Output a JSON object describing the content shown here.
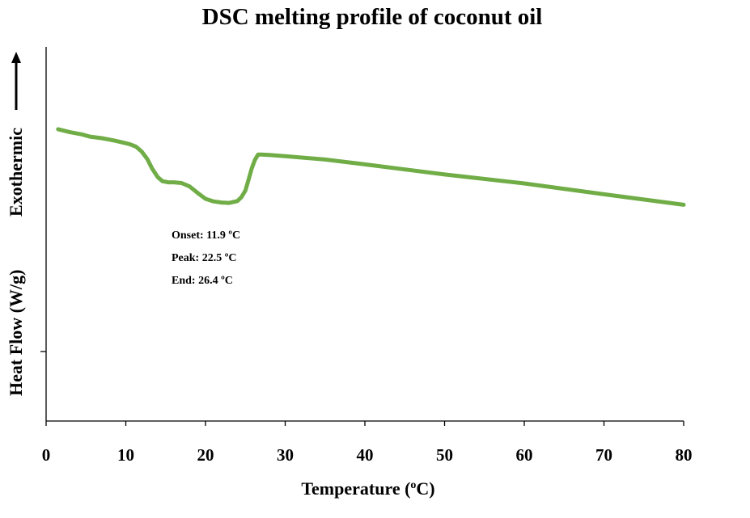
{
  "chart_data": {
    "type": "line",
    "title": "DSC melting profile of coconut oil",
    "xlabel": "Temperature (",
    "xlabel_sup": "o",
    "xlabel_tail": "C)",
    "ylabel": "Heat Flow (W/g)",
    "ylabel_extra": "Exothermic",
    "xlim": [
      0,
      80
    ],
    "xticks": [
      0,
      10,
      20,
      30,
      40,
      50,
      60,
      70,
      80
    ],
    "ylim": [
      0,
      1
    ],
    "grid": false,
    "legend": "none",
    "series_color": "#70ad47",
    "annotations": [
      "Onset: 11.9 ºC",
      "Peak: 22.5 ºC",
      "End: 26.4 ºC"
    ],
    "series": [
      {
        "x": [
          1.5,
          3,
          4.5,
          5.5,
          7,
          8.5,
          9.5,
          10.5,
          11.3,
          12,
          12.7,
          13.3,
          14,
          14.6,
          15.3,
          16,
          17,
          18,
          19,
          20,
          21,
          22,
          23,
          24,
          24.5,
          25,
          25.4,
          25.8,
          26.2,
          26.6,
          27,
          28,
          30,
          35,
          40,
          50,
          60,
          70,
          80
        ],
        "y": [
          0.78,
          0.772,
          0.766,
          0.76,
          0.756,
          0.75,
          0.745,
          0.74,
          0.733,
          0.72,
          0.7,
          0.675,
          0.652,
          0.641,
          0.638,
          0.638,
          0.636,
          0.627,
          0.61,
          0.594,
          0.587,
          0.584,
          0.583,
          0.588,
          0.598,
          0.616,
          0.645,
          0.675,
          0.698,
          0.712,
          0.712,
          0.711,
          0.708,
          0.699,
          0.686,
          0.659,
          0.635,
          0.606,
          0.578
        ]
      }
    ]
  }
}
